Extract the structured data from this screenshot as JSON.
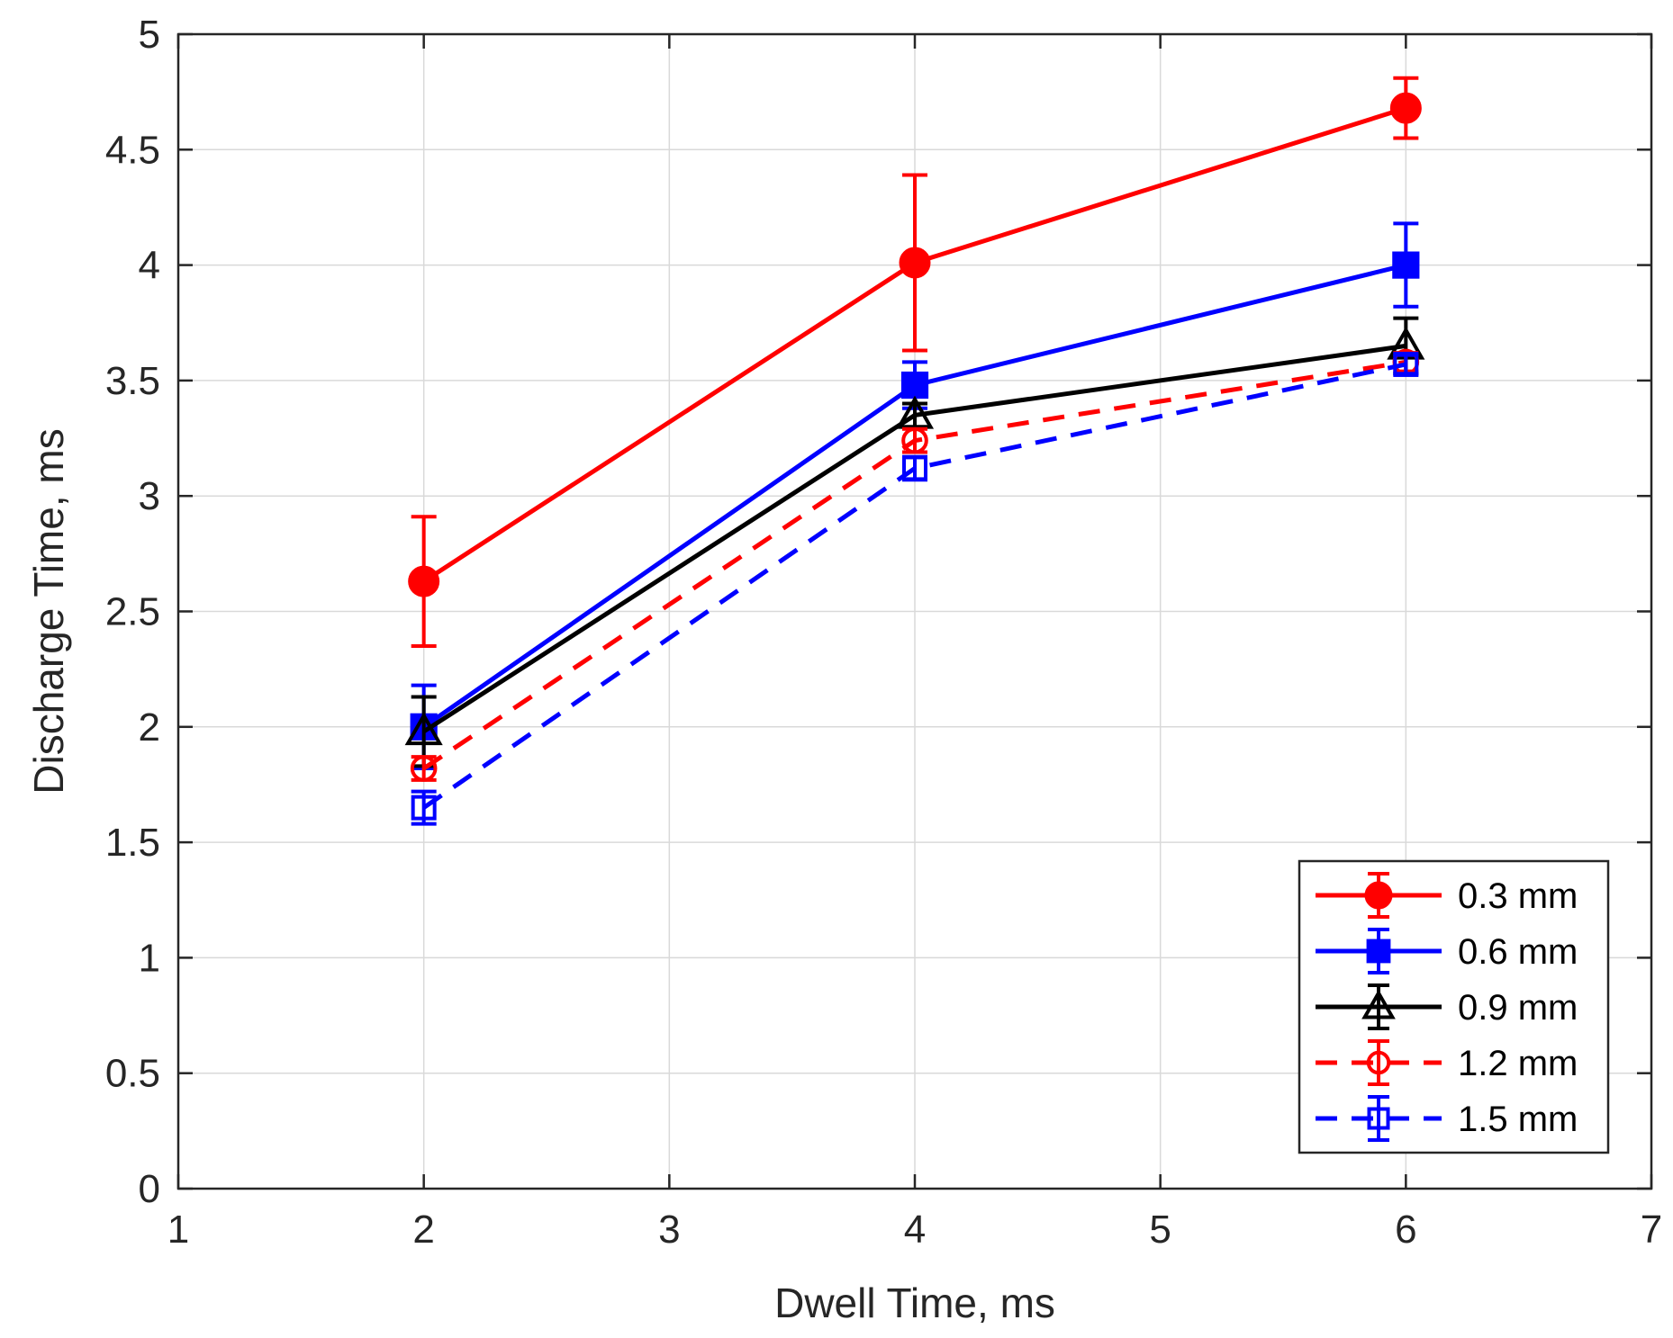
{
  "chart_data": {
    "type": "line",
    "title": "",
    "xlabel": "Dwell Time, ms",
    "ylabel": "Discharge Time, ms",
    "xlim": [
      1,
      7
    ],
    "ylim": [
      0,
      5
    ],
    "xticks": [
      1,
      2,
      3,
      4,
      5,
      6,
      7
    ],
    "yticks": [
      0,
      0.5,
      1,
      1.5,
      2,
      2.5,
      3,
      3.5,
      4,
      4.5,
      5
    ],
    "xtick_labels": [
      "1",
      "2",
      "3",
      "4",
      "5",
      "6",
      "7"
    ],
    "ytick_labels": [
      "0",
      "0.5",
      "1",
      "1.5",
      "2",
      "2.5",
      "3",
      "3.5",
      "4",
      "4.5",
      "5"
    ],
    "grid": true,
    "legend_position": "bottom-right",
    "x": [
      2,
      4,
      6
    ],
    "series": [
      {
        "name": "0.3 mm",
        "color": "#ff0000",
        "dash": "solid",
        "marker": "circle-filled",
        "values": [
          2.63,
          4.01,
          4.68
        ],
        "error": [
          0.28,
          0.38,
          0.13
        ]
      },
      {
        "name": "0.6 mm",
        "color": "#0000ff",
        "dash": "solid",
        "marker": "square-filled",
        "values": [
          2.0,
          3.48,
          4.0
        ],
        "error": [
          0.18,
          0.1,
          0.18
        ]
      },
      {
        "name": "0.9 mm",
        "color": "#000000",
        "dash": "solid",
        "marker": "triangle-open",
        "values": [
          1.98,
          3.35,
          3.65
        ],
        "error": [
          0.15,
          0.05,
          0.12
        ]
      },
      {
        "name": "1.2 mm",
        "color": "#ff0000",
        "dash": "dashed",
        "marker": "circle-open",
        "values": [
          1.82,
          3.24,
          3.58
        ],
        "error": [
          0.05,
          0.05,
          0.04
        ]
      },
      {
        "name": "1.5 mm",
        "color": "#0000ff",
        "dash": "dashed",
        "marker": "square-open",
        "values": [
          1.65,
          3.12,
          3.57
        ],
        "error": [
          0.07,
          0.05,
          0.04
        ]
      }
    ]
  }
}
